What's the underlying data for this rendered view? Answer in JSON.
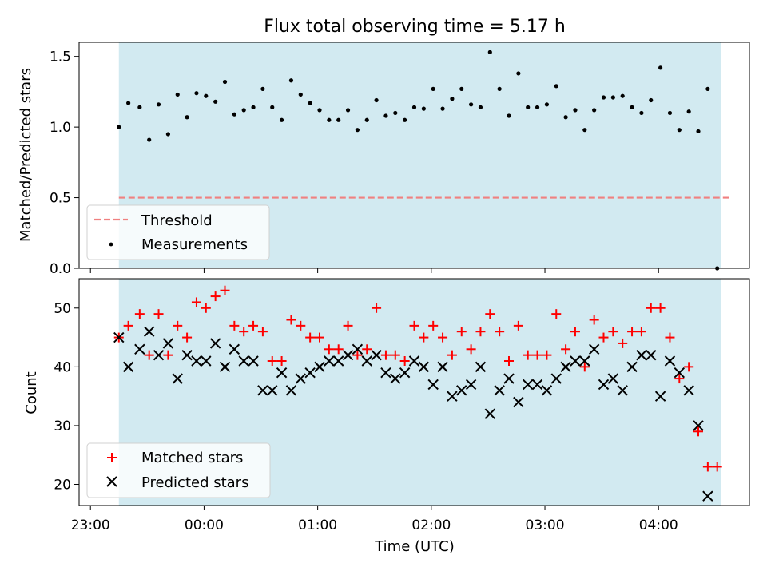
{
  "chart_data": [
    {
      "type": "scatter",
      "title": "Flux total observing time = 5.17 h",
      "xlabel": "",
      "ylabel": "Matched/Predicted stars",
      "ylim": [
        0,
        1.6
      ],
      "yticks": [
        "0.0",
        "0.5",
        "1.0",
        "1.5"
      ],
      "xlim": [
        "22:54",
        "04:48"
      ],
      "shaded_interval": [
        "23:15",
        "04:33"
      ],
      "shade_color": "#add8e6",
      "threshold": {
        "name": "Threshold",
        "value": 0.5,
        "x_range": [
          "23:15",
          "04:38"
        ],
        "color": "#f08080"
      },
      "legend": {
        "location": "lower-left",
        "entries": [
          "Threshold",
          "Measurements"
        ]
      },
      "series": [
        {
          "name": "Measurements",
          "color": "#000000",
          "points": [
            [
              "23:15",
              1.0
            ],
            [
              "23:20",
              1.17
            ],
            [
              "23:26",
              1.14
            ],
            [
              "23:31",
              0.91
            ],
            [
              "23:36",
              1.16
            ],
            [
              "23:41",
              0.95
            ],
            [
              "23:46",
              1.23
            ],
            [
              "23:51",
              1.07
            ],
            [
              "23:56",
              1.24
            ],
            [
              "00:01",
              1.22
            ],
            [
              "00:06",
              1.18
            ],
            [
              "00:11",
              1.32
            ],
            [
              "00:16",
              1.09
            ],
            [
              "00:21",
              1.12
            ],
            [
              "00:26",
              1.14
            ],
            [
              "00:31",
              1.27
            ],
            [
              "00:36",
              1.14
            ],
            [
              "00:41",
              1.05
            ],
            [
              "00:46",
              1.33
            ],
            [
              "00:51",
              1.23
            ],
            [
              "00:56",
              1.17
            ],
            [
              "01:01",
              1.12
            ],
            [
              "01:06",
              1.05
            ],
            [
              "01:11",
              1.05
            ],
            [
              "01:16",
              1.12
            ],
            [
              "01:21",
              0.98
            ],
            [
              "01:26",
              1.05
            ],
            [
              "01:31",
              1.19
            ],
            [
              "01:36",
              1.08
            ],
            [
              "01:41",
              1.1
            ],
            [
              "01:46",
              1.05
            ],
            [
              "01:51",
              1.14
            ],
            [
              "01:56",
              1.13
            ],
            [
              "02:01",
              1.27
            ],
            [
              "02:06",
              1.13
            ],
            [
              "02:11",
              1.2
            ],
            [
              "02:16",
              1.27
            ],
            [
              "02:21",
              1.16
            ],
            [
              "02:26",
              1.14
            ],
            [
              "02:31",
              1.53
            ],
            [
              "02:36",
              1.27
            ],
            [
              "02:41",
              1.08
            ],
            [
              "02:46",
              1.38
            ],
            [
              "02:51",
              1.14
            ],
            [
              "02:56",
              1.14
            ],
            [
              "03:01",
              1.16
            ],
            [
              "03:06",
              1.29
            ],
            [
              "03:11",
              1.07
            ],
            [
              "03:16",
              1.12
            ],
            [
              "03:21",
              0.98
            ],
            [
              "03:26",
              1.12
            ],
            [
              "03:31",
              1.21
            ],
            [
              "03:36",
              1.21
            ],
            [
              "03:41",
              1.22
            ],
            [
              "03:46",
              1.14
            ],
            [
              "03:51",
              1.1
            ],
            [
              "03:56",
              1.19
            ],
            [
              "04:01",
              1.42
            ],
            [
              "04:06",
              1.1
            ],
            [
              "04:11",
              0.98
            ],
            [
              "04:16",
              1.11
            ],
            [
              "04:21",
              0.97
            ],
            [
              "04:26",
              1.27
            ],
            [
              "04:31",
              0.0
            ]
          ]
        }
      ]
    },
    {
      "type": "scatter",
      "title": "",
      "xlabel": "Time (UTC)",
      "ylabel": "Count",
      "ylim": [
        16.4,
        55
      ],
      "yticks": [
        "20",
        "30",
        "40",
        "50"
      ],
      "xlim": [
        "22:54",
        "04:48"
      ],
      "xticks": [
        "23:00",
        "00:00",
        "01:00",
        "02:00",
        "03:00",
        "04:00"
      ],
      "shaded_interval": [
        "23:15",
        "04:33"
      ],
      "shade_color": "#add8e6",
      "legend": {
        "location": "lower-left",
        "entries": [
          "Matched stars",
          "Predicted stars"
        ]
      },
      "series": [
        {
          "name": "Matched stars",
          "marker": "plus",
          "color": "#ff0000",
          "points": [
            [
              "23:15",
              45
            ],
            [
              "23:20",
              47
            ],
            [
              "23:26",
              49
            ],
            [
              "23:31",
              42
            ],
            [
              "23:36",
              49
            ],
            [
              "23:41",
              42
            ],
            [
              "23:46",
              47
            ],
            [
              "23:51",
              45
            ],
            [
              "23:56",
              51
            ],
            [
              "00:01",
              50
            ],
            [
              "00:06",
              52
            ],
            [
              "00:11",
              53
            ],
            [
              "00:16",
              47
            ],
            [
              "00:21",
              46
            ],
            [
              "00:26",
              47
            ],
            [
              "00:31",
              46
            ],
            [
              "00:36",
              41
            ],
            [
              "00:41",
              41
            ],
            [
              "00:46",
              48
            ],
            [
              "00:51",
              47
            ],
            [
              "00:56",
              45
            ],
            [
              "01:01",
              45
            ],
            [
              "01:06",
              43
            ],
            [
              "01:11",
              43
            ],
            [
              "01:16",
              47
            ],
            [
              "01:21",
              42
            ],
            [
              "01:26",
              43
            ],
            [
              "01:31",
              50
            ],
            [
              "01:36",
              42
            ],
            [
              "01:41",
              42
            ],
            [
              "01:46",
              41
            ],
            [
              "01:51",
              47
            ],
            [
              "01:56",
              45
            ],
            [
              "02:01",
              47
            ],
            [
              "02:06",
              45
            ],
            [
              "02:11",
              42
            ],
            [
              "02:16",
              46
            ],
            [
              "02:21",
              43
            ],
            [
              "02:26",
              46
            ],
            [
              "02:31",
              49
            ],
            [
              "02:36",
              46
            ],
            [
              "02:41",
              41
            ],
            [
              "02:46",
              47
            ],
            [
              "02:51",
              42
            ],
            [
              "02:56",
              42
            ],
            [
              "03:01",
              42
            ],
            [
              "03:06",
              49
            ],
            [
              "03:11",
              43
            ],
            [
              "03:16",
              46
            ],
            [
              "03:21",
              40
            ],
            [
              "03:26",
              48
            ],
            [
              "03:31",
              45
            ],
            [
              "03:36",
              46
            ],
            [
              "03:41",
              44
            ],
            [
              "03:46",
              46
            ],
            [
              "03:51",
              46
            ],
            [
              "03:56",
              50
            ],
            [
              "04:01",
              50
            ],
            [
              "04:06",
              45
            ],
            [
              "04:11",
              38
            ],
            [
              "04:16",
              40
            ],
            [
              "04:21",
              29
            ],
            [
              "04:26",
              23
            ],
            [
              "04:31",
              23
            ]
          ]
        },
        {
          "name": "Predicted stars",
          "marker": "x",
          "color": "#000000",
          "points": [
            [
              "23:15",
              45
            ],
            [
              "23:20",
              40
            ],
            [
              "23:26",
              43
            ],
            [
              "23:31",
              46
            ],
            [
              "23:36",
              42
            ],
            [
              "23:41",
              44
            ],
            [
              "23:46",
              38
            ],
            [
              "23:51",
              42
            ],
            [
              "23:56",
              41
            ],
            [
              "00:01",
              41
            ],
            [
              "00:06",
              44
            ],
            [
              "00:11",
              40
            ],
            [
              "00:16",
              43
            ],
            [
              "00:21",
              41
            ],
            [
              "00:26",
              41
            ],
            [
              "00:31",
              36
            ],
            [
              "00:36",
              36
            ],
            [
              "00:41",
              39
            ],
            [
              "00:46",
              36
            ],
            [
              "00:51",
              38
            ],
            [
              "00:56",
              39
            ],
            [
              "01:01",
              40
            ],
            [
              "01:06",
              41
            ],
            [
              "01:11",
              41
            ],
            [
              "01:16",
              42
            ],
            [
              "01:21",
              43
            ],
            [
              "01:26",
              41
            ],
            [
              "01:31",
              42
            ],
            [
              "01:36",
              39
            ],
            [
              "01:41",
              38
            ],
            [
              "01:46",
              39
            ],
            [
              "01:51",
              41
            ],
            [
              "01:56",
              40
            ],
            [
              "02:01",
              37
            ],
            [
              "02:06",
              40
            ],
            [
              "02:11",
              35
            ],
            [
              "02:16",
              36
            ],
            [
              "02:21",
              37
            ],
            [
              "02:26",
              40
            ],
            [
              "02:31",
              32
            ],
            [
              "02:36",
              36
            ],
            [
              "02:41",
              38
            ],
            [
              "02:46",
              34
            ],
            [
              "02:51",
              37
            ],
            [
              "02:56",
              37
            ],
            [
              "03:01",
              36
            ],
            [
              "03:06",
              38
            ],
            [
              "03:11",
              40
            ],
            [
              "03:16",
              41
            ],
            [
              "03:21",
              41
            ],
            [
              "03:26",
              43
            ],
            [
              "03:31",
              37
            ],
            [
              "03:36",
              38
            ],
            [
              "03:41",
              36
            ],
            [
              "03:46",
              40
            ],
            [
              "03:51",
              42
            ],
            [
              "03:56",
              42
            ],
            [
              "04:01",
              35
            ],
            [
              "04:06",
              41
            ],
            [
              "04:11",
              39
            ],
            [
              "04:16",
              36
            ],
            [
              "04:21",
              30
            ],
            [
              "04:26",
              18
            ]
          ]
        }
      ]
    }
  ]
}
